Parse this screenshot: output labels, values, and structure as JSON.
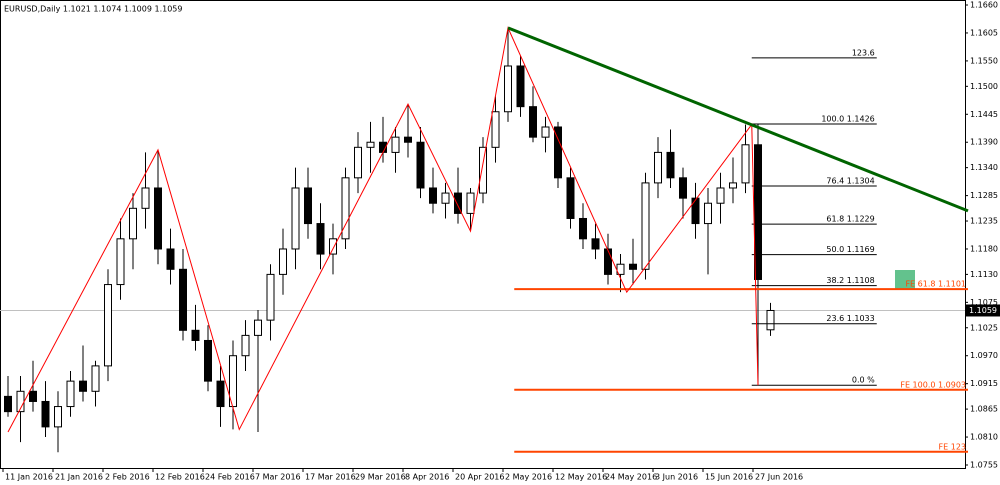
{
  "chart_data": {
    "type": "candlestick",
    "title": "EURUSD,Daily  1.1021 1.1074 1.1009 1.1059",
    "x": [
      "11 Jan 2016",
      null,
      null,
      null,
      "21 Jan 2016",
      null,
      null,
      null,
      "2 Feb 2016",
      null,
      null,
      null,
      "12 Feb 2016",
      null,
      null,
      null,
      "24 Feb 2016",
      null,
      null,
      null,
      "7 Mar 2016",
      null,
      null,
      null,
      "17 Mar 2016",
      null,
      null,
      null,
      "29 Mar 2016",
      null,
      null,
      null,
      "8 Apr 2016",
      null,
      null,
      null,
      "20 Apr 2016",
      null,
      null,
      null,
      "2 May 2016",
      null,
      null,
      null,
      "12 May 2016",
      null,
      null,
      null,
      "24 May 2016",
      null,
      null,
      null,
      "3 Jun 2016",
      null,
      null,
      null,
      "15 Jun 2016",
      null,
      null,
      null,
      "27 Jun 2016",
      null
    ],
    "open": [
      1.089,
      1.086,
      1.09,
      1.088,
      1.083,
      1.087,
      1.092,
      1.09,
      1.095,
      1.111,
      1.12,
      1.126,
      1.13,
      1.118,
      1.114,
      1.102,
      1.1,
      1.092,
      1.087,
      1.097,
      1.101,
      1.104,
      1.113,
      1.118,
      1.13,
      1.123,
      1.117,
      1.12,
      1.132,
      1.138,
      1.139,
      1.137,
      1.14,
      1.139,
      1.13,
      1.127,
      1.129,
      1.125,
      1.129,
      1.138,
      1.145,
      1.154,
      1.146,
      1.14,
      1.142,
      1.132,
      1.124,
      1.12,
      1.118,
      1.113,
      1.115,
      1.114,
      1.131,
      1.137,
      1.132,
      1.128,
      1.123,
      1.127,
      1.13,
      1.131,
      1.1385,
      1.1021
    ],
    "high": [
      1.093,
      1.093,
      1.096,
      1.092,
      1.09,
      1.094,
      1.099,
      1.096,
      1.114,
      1.124,
      1.129,
      1.137,
      1.1375,
      1.122,
      1.118,
      1.107,
      1.103,
      1.095,
      1.1,
      1.104,
      1.106,
      1.115,
      1.122,
      1.134,
      1.134,
      1.127,
      1.123,
      1.134,
      1.141,
      1.143,
      1.144,
      1.142,
      1.1465,
      1.142,
      1.134,
      1.131,
      1.134,
      1.13,
      1.14,
      1.148,
      1.1615,
      1.156,
      1.15,
      1.144,
      1.143,
      1.134,
      1.127,
      1.123,
      1.121,
      1.117,
      1.12,
      1.133,
      1.14,
      1.1415,
      1.134,
      1.131,
      1.13,
      1.133,
      1.136,
      1.1425,
      1.1425,
      1.1074
    ],
    "low": [
      1.085,
      1.08,
      1.086,
      1.081,
      1.078,
      1.085,
      1.088,
      1.087,
      1.092,
      1.108,
      1.114,
      1.122,
      1.115,
      1.111,
      1.1,
      1.098,
      1.09,
      1.083,
      1.0825,
      1.094,
      1.082,
      1.1,
      1.109,
      1.114,
      1.12,
      1.114,
      1.113,
      1.118,
      1.129,
      1.133,
      1.135,
      1.133,
      1.136,
      1.128,
      1.125,
      1.124,
      1.123,
      1.1215,
      1.127,
      1.135,
      1.143,
      1.144,
      1.139,
      1.137,
      1.13,
      1.122,
      1.118,
      1.116,
      1.111,
      1.1095,
      1.111,
      1.112,
      1.128,
      1.13,
      1.124,
      1.12,
      1.113,
      1.123,
      1.127,
      1.129,
      1.0912,
      1.1009
    ],
    "close": [
      1.086,
      1.09,
      1.088,
      1.083,
      1.087,
      1.092,
      1.09,
      1.095,
      1.111,
      1.12,
      1.126,
      1.13,
      1.118,
      1.114,
      1.102,
      1.1,
      1.092,
      1.087,
      1.097,
      1.101,
      1.104,
      1.113,
      1.118,
      1.13,
      1.123,
      1.117,
      1.12,
      1.132,
      1.138,
      1.139,
      1.137,
      1.14,
      1.139,
      1.13,
      1.127,
      1.129,
      1.125,
      1.129,
      1.138,
      1.145,
      1.154,
      1.146,
      1.14,
      1.142,
      1.132,
      1.124,
      1.12,
      1.118,
      1.113,
      1.115,
      1.114,
      1.131,
      1.137,
      1.132,
      1.128,
      1.123,
      1.127,
      1.13,
      1.131,
      1.1385,
      1.112,
      1.1059
    ],
    "ylim": [
      1.0755,
      1.166
    ],
    "yticks": [
      {
        "value": 1.166,
        "label": "1.1660"
      },
      1.1605,
      {
        "value": 1.155,
        "label": "1.1550"
      },
      {
        "value": 1.15,
        "label": "1.1500"
      },
      1.1445,
      {
        "value": 1.139,
        "label": "1.1390"
      },
      {
        "value": 1.134,
        "label": "1.1340"
      },
      1.1285,
      1.1235,
      {
        "value": 1.118,
        "label": "1.1180"
      },
      {
        "value": 1.113,
        "label": "1.1130"
      },
      1.1075,
      1.1025,
      {
        "value": 1.097,
        "label": "1.0970"
      },
      1.0915,
      1.0865,
      {
        "value": 1.081,
        "label": "1.0810"
      },
      1.0755
    ],
    "current_price": {
      "value": 1.1059,
      "label": "1.1059"
    },
    "zigzag": {
      "color": "#ff0000",
      "x": [
        0,
        12,
        18.5,
        32,
        37,
        40,
        49.5,
        59.5,
        60
      ],
      "values": [
        1.082,
        1.1375,
        1.0825,
        1.1465,
        1.1215,
        1.1615,
        1.1095,
        1.1425,
        1.0912
      ]
    },
    "trendline": {
      "color": "#006400",
      "x": [
        40,
        76.8
      ],
      "values": [
        1.1615,
        1.1255
      ]
    },
    "fibo": {
      "color": "#000000",
      "x": [
        59.5,
        69.5
      ],
      "levels": [
        {
          "value": 1.1556,
          "label": "123.6"
        },
        {
          "value": 1.1426,
          "label": "100.0 1.1426"
        },
        {
          "value": 1.1304,
          "label": "76.4 1.1304"
        },
        {
          "value": 1.1229,
          "label": "61.8 1.1229"
        },
        {
          "value": 1.1169,
          "label": "50.0 1.1169"
        },
        {
          "value": 1.1108,
          "label": "38.2 1.1108"
        },
        {
          "value": 1.1033,
          "label": "23.6 1.1033"
        },
        {
          "value": 1.0912,
          "label": "0.0 %"
        }
      ]
    },
    "expansion": {
      "color": "#ff4500",
      "x": [
        40.5,
        76.8
      ],
      "levels": [
        {
          "value": 1.1101,
          "label": "FE 61.8 1.1101"
        },
        {
          "value": 1.0903,
          "label": "FE 100.0 1.0903"
        },
        {
          "value": 1.0781,
          "label": "FE 123"
        }
      ]
    }
  }
}
